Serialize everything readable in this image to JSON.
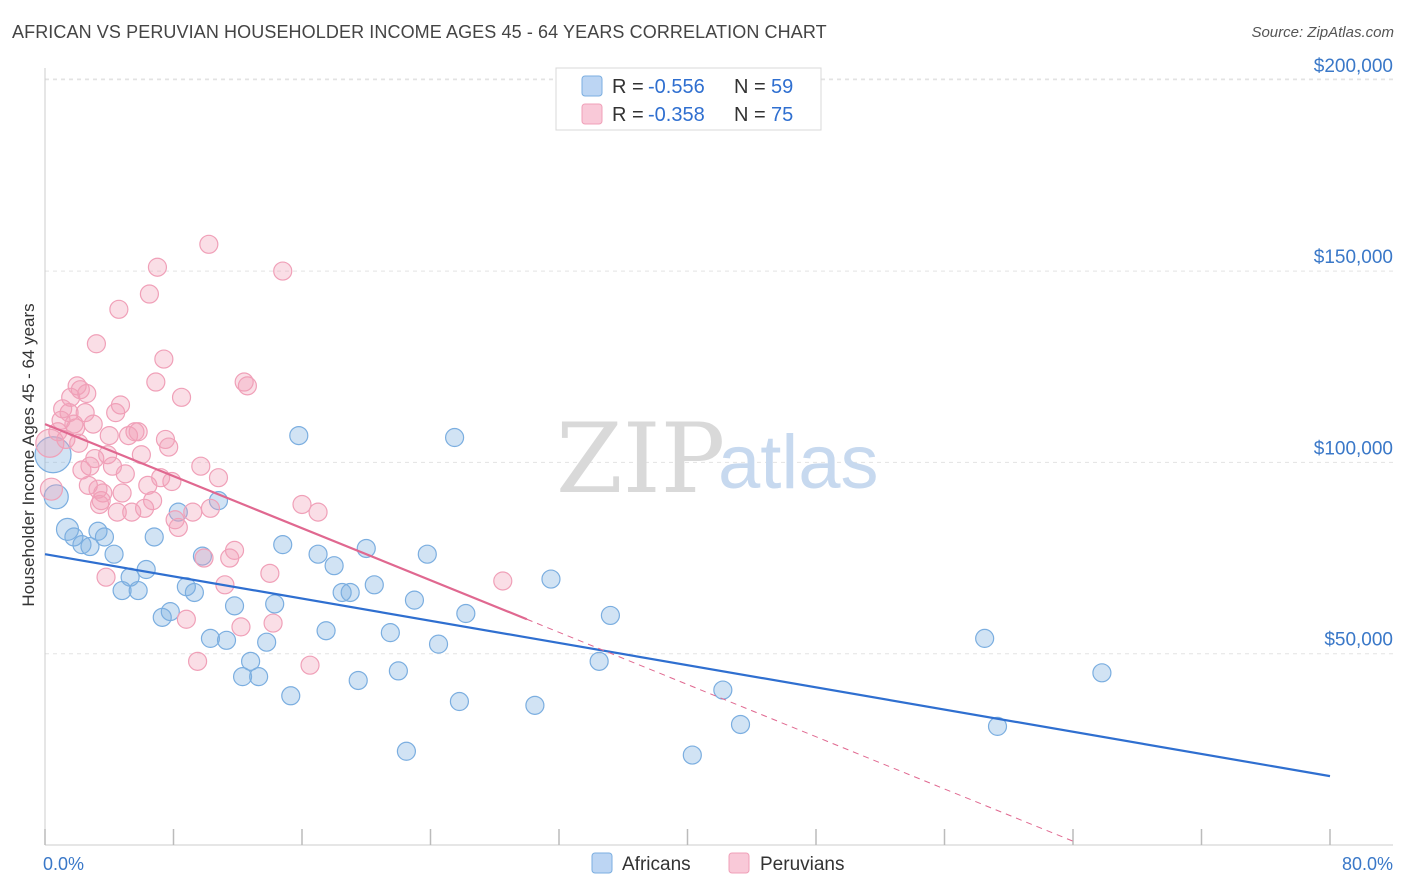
{
  "header": {
    "title": "AFRICAN VS PERUVIAN HOUSEHOLDER INCOME AGES 45 - 64 YEARS CORRELATION CHART",
    "source": "Source: ZipAtlas.com"
  },
  "watermark": {
    "zip": "ZIP",
    "atlas": "atlas"
  },
  "legend": {
    "r_label": "R =",
    "n_label": "N =",
    "rows": [
      {
        "r": "-0.556",
        "n": "59",
        "color": "#7baee0"
      },
      {
        "r": "-0.358",
        "n": "75",
        "color": "#f0a0b8"
      }
    ]
  },
  "bottom_legend": [
    {
      "label": "Africans",
      "color": "#7baee0"
    },
    {
      "label": "Peruvians",
      "color": "#f0a0b8"
    }
  ],
  "chart_data": {
    "type": "scatter",
    "xlabel": "",
    "ylabel": "Householder Income Ages 45 - 64 years",
    "xlim": [
      0,
      80
    ],
    "ylim": [
      0,
      210000
    ],
    "x_tick_labels": [
      "0.0%",
      "80.0%"
    ],
    "y_ticks": [
      50000,
      100000,
      150000,
      200000
    ],
    "y_tick_labels": [
      "$50,000",
      "$100,000",
      "$150,000",
      "$200,000"
    ],
    "grid": true,
    "series": [
      {
        "name": "Africans",
        "color": "#7baee0",
        "line_color": "#2f6fd0",
        "trend": {
          "x0": 0,
          "y0": 76000,
          "x1": 80,
          "y1": 18000
        },
        "points": [
          [
            0.5,
            102000,
            18
          ],
          [
            0.7,
            91000,
            12
          ],
          [
            1.4,
            82500,
            11
          ],
          [
            1.8,
            80500,
            9
          ],
          [
            2.3,
            78500,
            9
          ],
          [
            2.8,
            78000,
            9
          ],
          [
            3.3,
            82000,
            9
          ],
          [
            3.7,
            80500,
            9
          ],
          [
            4.3,
            76000,
            9
          ],
          [
            4.8,
            66500,
            9
          ],
          [
            5.3,
            70000,
            9
          ],
          [
            5.8,
            66500,
            9
          ],
          [
            6.3,
            72000,
            9
          ],
          [
            6.8,
            80500,
            9
          ],
          [
            7.3,
            59500,
            9
          ],
          [
            7.8,
            61000,
            9
          ],
          [
            8.3,
            87000,
            9
          ],
          [
            8.8,
            67500,
            9
          ],
          [
            9.3,
            66000,
            9
          ],
          [
            9.8,
            75500,
            9
          ],
          [
            10.3,
            54000,
            9
          ],
          [
            10.8,
            90000,
            9
          ],
          [
            11.3,
            53500,
            9
          ],
          [
            11.8,
            62500,
            9
          ],
          [
            12.3,
            44000,
            9
          ],
          [
            12.8,
            48000,
            9
          ],
          [
            13.3,
            44000,
            9
          ],
          [
            13.8,
            53000,
            9
          ],
          [
            14.3,
            63000,
            9
          ],
          [
            14.8,
            78500,
            9
          ],
          [
            15.3,
            39000,
            9
          ],
          [
            15.8,
            107000,
            9
          ],
          [
            17.0,
            76000,
            9
          ],
          [
            17.5,
            56000,
            9
          ],
          [
            18.0,
            73000,
            9
          ],
          [
            18.5,
            66000,
            9
          ],
          [
            19.0,
            66000,
            9
          ],
          [
            19.5,
            43000,
            9
          ],
          [
            20.0,
            77500,
            9
          ],
          [
            20.5,
            68000,
            9
          ],
          [
            21.5,
            55500,
            9
          ],
          [
            22.0,
            45500,
            9
          ],
          [
            22.5,
            24500,
            9
          ],
          [
            23.0,
            64000,
            9
          ],
          [
            23.8,
            76000,
            9
          ],
          [
            24.5,
            52500,
            9
          ],
          [
            25.5,
            106500,
            9
          ],
          [
            25.8,
            37500,
            9
          ],
          [
            26.2,
            60500,
            9
          ],
          [
            30.5,
            36500,
            9
          ],
          [
            31.5,
            69500,
            9
          ],
          [
            34.5,
            48000,
            9
          ],
          [
            35.2,
            60000,
            9
          ],
          [
            40.3,
            23500,
            9
          ],
          [
            42.2,
            40500,
            9
          ],
          [
            43.3,
            31500,
            9
          ],
          [
            58.5,
            54000,
            9
          ],
          [
            59.3,
            31000,
            9
          ],
          [
            65.8,
            45000,
            9
          ]
        ]
      },
      {
        "name": "Peruvians",
        "color": "#f0a0b8",
        "line_color": "#e06890",
        "trend": {
          "x0": 0,
          "y0": 110000,
          "x1": 30,
          "y1": 59000
        },
        "dashed_extension": {
          "x0": 30,
          "y0": 59000,
          "x1": 64,
          "y1": 1000
        },
        "points": [
          [
            0.3,
            105000,
            14
          ],
          [
            0.4,
            93000,
            11
          ],
          [
            0.8,
            108000,
            9
          ],
          [
            1.0,
            111000,
            9
          ],
          [
            1.1,
            114000,
            9
          ],
          [
            1.3,
            106000,
            9
          ],
          [
            1.5,
            113000,
            9
          ],
          [
            1.6,
            117000,
            9
          ],
          [
            1.8,
            110000,
            9
          ],
          [
            1.9,
            109000,
            9
          ],
          [
            2.0,
            120000,
            9
          ],
          [
            2.1,
            105000,
            9
          ],
          [
            2.2,
            119000,
            9
          ],
          [
            2.3,
            98000,
            9
          ],
          [
            2.5,
            113000,
            9
          ],
          [
            2.6,
            118000,
            9
          ],
          [
            2.7,
            94000,
            9
          ],
          [
            2.8,
            99000,
            9
          ],
          [
            3.0,
            110000,
            9
          ],
          [
            3.1,
            101000,
            9
          ],
          [
            3.2,
            131000,
            9
          ],
          [
            3.3,
            93000,
            9
          ],
          [
            3.4,
            89000,
            9
          ],
          [
            3.5,
            90000,
            9
          ],
          [
            3.6,
            92000,
            9
          ],
          [
            3.8,
            70000,
            9
          ],
          [
            3.9,
            102000,
            9
          ],
          [
            4.0,
            107000,
            9
          ],
          [
            4.2,
            99000,
            9
          ],
          [
            4.4,
            113000,
            9
          ],
          [
            4.5,
            87000,
            9
          ],
          [
            4.6,
            140000,
            9
          ],
          [
            4.7,
            115000,
            9
          ],
          [
            4.8,
            92000,
            9
          ],
          [
            5.0,
            97000,
            9
          ],
          [
            5.2,
            107000,
            9
          ],
          [
            5.4,
            87000,
            9
          ],
          [
            5.6,
            108000,
            9
          ],
          [
            5.8,
            108000,
            9
          ],
          [
            6.0,
            102000,
            9
          ],
          [
            6.2,
            88000,
            9
          ],
          [
            6.4,
            94000,
            9
          ],
          [
            6.5,
            144000,
            9
          ],
          [
            6.7,
            90000,
            9
          ],
          [
            6.9,
            121000,
            9
          ],
          [
            7.0,
            151000,
            9
          ],
          [
            7.2,
            96000,
            9
          ],
          [
            7.4,
            127000,
            9
          ],
          [
            7.5,
            106000,
            9
          ],
          [
            7.7,
            104000,
            9
          ],
          [
            7.9,
            95000,
            9
          ],
          [
            8.1,
            85000,
            9
          ],
          [
            8.3,
            83000,
            9
          ],
          [
            8.5,
            117000,
            9
          ],
          [
            8.8,
            59000,
            9
          ],
          [
            9.2,
            87000,
            9
          ],
          [
            9.5,
            48000,
            9
          ],
          [
            9.7,
            99000,
            9
          ],
          [
            9.9,
            75000,
            9
          ],
          [
            10.2,
            157000,
            9
          ],
          [
            10.3,
            88000,
            9
          ],
          [
            10.8,
            96000,
            9
          ],
          [
            11.2,
            68000,
            9
          ],
          [
            11.5,
            75000,
            9
          ],
          [
            11.8,
            77000,
            9
          ],
          [
            12.2,
            57000,
            9
          ],
          [
            12.4,
            121000,
            9
          ],
          [
            12.6,
            120000,
            9
          ],
          [
            14.0,
            71000,
            9
          ],
          [
            14.2,
            58000,
            9
          ],
          [
            14.8,
            150000,
            9
          ],
          [
            16.0,
            89000,
            9
          ],
          [
            16.5,
            47000,
            9
          ],
          [
            17.0,
            87000,
            9
          ],
          [
            28.5,
            69000,
            9
          ]
        ]
      }
    ]
  }
}
